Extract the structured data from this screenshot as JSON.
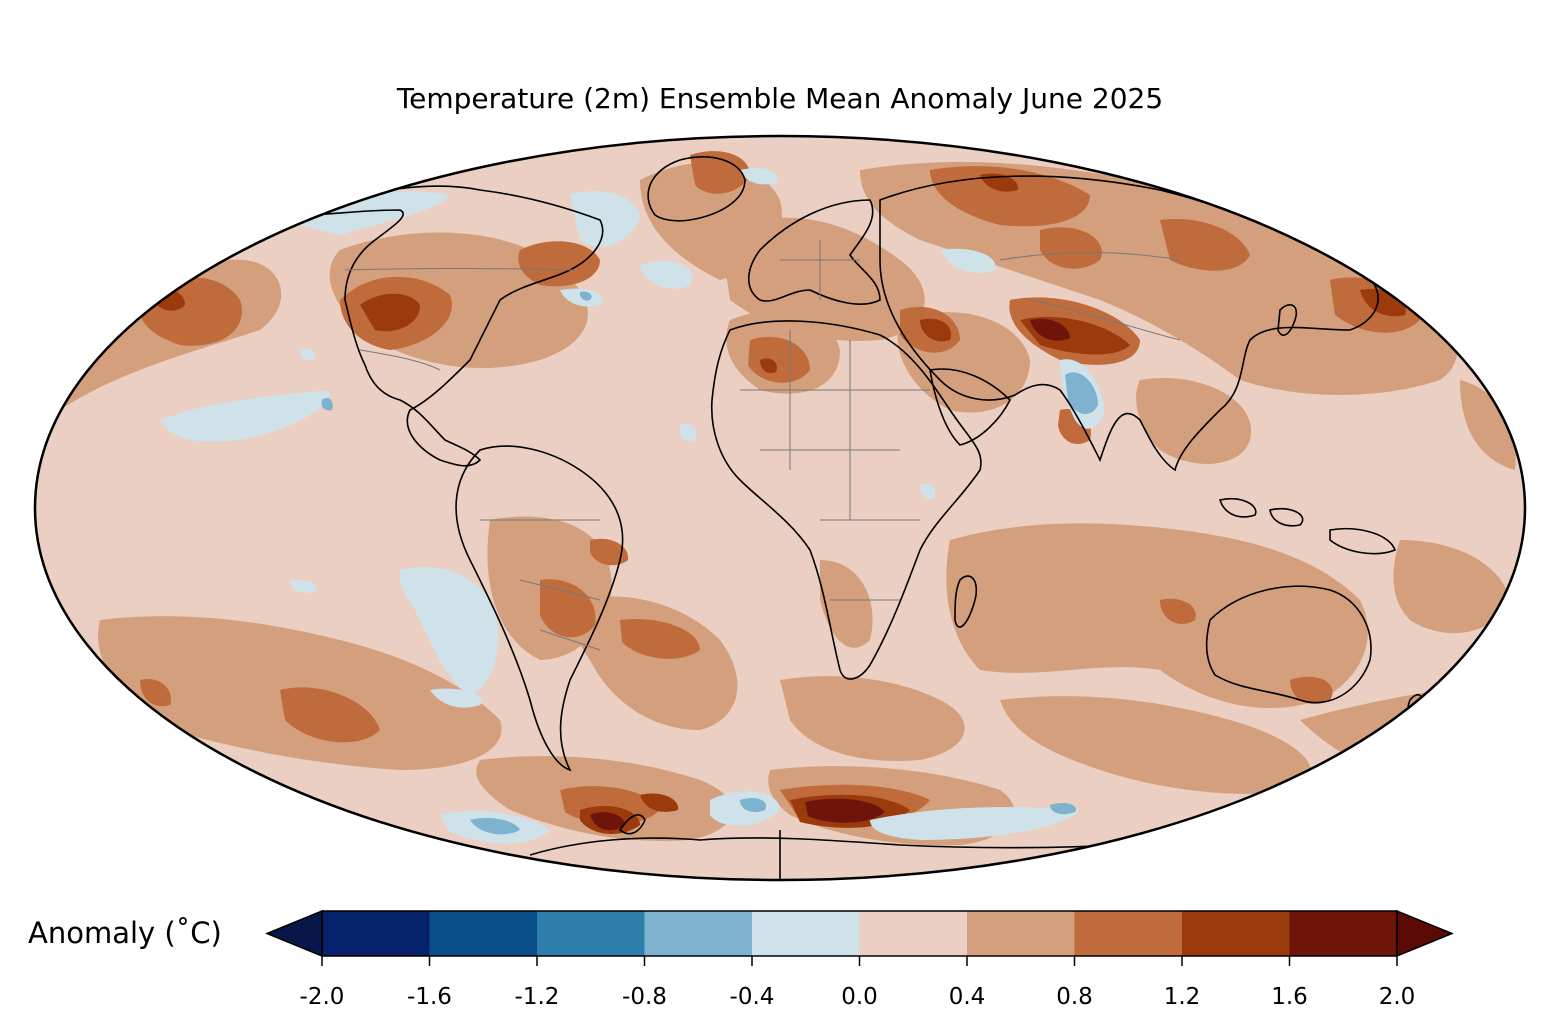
{
  "map": {
    "title": "Temperature (2m) Ensemble Mean Anomaly June 2025",
    "projection": "Mollweide",
    "background_anomaly_color": "#ebcfc2"
  },
  "colorbar": {
    "label": "Anomaly (˚C)",
    "orientation": "horizontal",
    "extend": "both",
    "under_color": "#08174a",
    "over_color": "#5c0a06",
    "bins": [
      {
        "from": -2.0,
        "to": -1.6,
        "color": "#06216b"
      },
      {
        "from": -1.6,
        "to": -1.2,
        "color": "#0a4f8c"
      },
      {
        "from": -1.2,
        "to": -0.8,
        "color": "#2e7eab"
      },
      {
        "from": -0.8,
        "to": -0.4,
        "color": "#7db3cf"
      },
      {
        "from": -0.4,
        "to": 0.0,
        "color": "#cfe2ea"
      },
      {
        "from": 0.0,
        "to": 0.4,
        "color": "#ebcfc2"
      },
      {
        "from": 0.4,
        "to": 0.8,
        "color": "#d49f7d"
      },
      {
        "from": 0.8,
        "to": 1.2,
        "color": "#c06b3c"
      },
      {
        "from": 1.2,
        "to": 1.6,
        "color": "#9b3a0c"
      },
      {
        "from": 1.6,
        "to": 2.0,
        "color": "#6e140b"
      }
    ],
    "ticks": [
      "-2.0",
      "-1.6",
      "-1.2",
      "-0.8",
      "-0.4",
      "0.0",
      "0.4",
      "0.8",
      "1.2",
      "1.6",
      "2.0"
    ]
  }
}
